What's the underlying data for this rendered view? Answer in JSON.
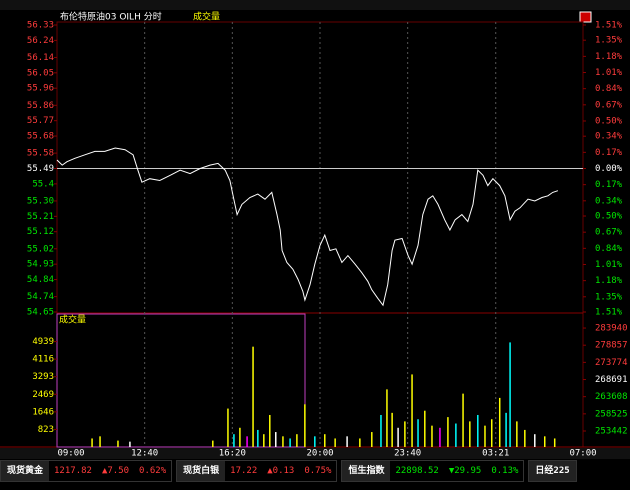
{
  "header": {
    "name": "布伦特原油03 OILH 分时",
    "indicator": "成交量"
  },
  "chart_data": [
    {
      "type": "line",
      "reference": 55.49,
      "grid": true,
      "up_color": "#ff3c3c",
      "down_color": "#00e600",
      "ylim": [
        54.65,
        56.33
      ],
      "yticks": [
        56.33,
        56.24,
        56.14,
        56.05,
        55.96,
        55.86,
        55.77,
        55.68,
        55.58,
        55.49,
        55.4,
        {
          "value": 55.3,
          "label": "55.30"
        },
        55.21,
        55.12,
        55.02,
        54.93,
        54.84,
        54.74,
        54.65
      ],
      "y2lim": [
        -1.51,
        1.51
      ],
      "y2ticks": [
        {
          "value": 1.51,
          "label": "1.51%"
        },
        {
          "value": 1.35,
          "label": "1.35%"
        },
        {
          "value": 1.18,
          "label": "1.18%"
        },
        {
          "value": 1.01,
          "label": "1.01%"
        },
        {
          "value": 0.84,
          "label": "0.84%"
        },
        {
          "value": 0.67,
          "label": "0.67%"
        },
        {
          "value": 0.5,
          "label": "0.50%"
        },
        {
          "value": 0.34,
          "label": "0.34%"
        },
        {
          "value": 0.17,
          "label": "0.17%"
        },
        {
          "value": 0,
          "label": "0.00%"
        },
        {
          "value": -0.17,
          "label": "0.17%"
        },
        {
          "value": -0.34,
          "label": "0.34%"
        },
        {
          "value": -0.5,
          "label": "0.50%"
        },
        {
          "value": -0.67,
          "label": "0.67%"
        },
        {
          "value": -0.84,
          "label": "0.84%"
        },
        {
          "value": -1.01,
          "label": "1.01%"
        },
        {
          "value": -1.18,
          "label": "1.18%"
        },
        {
          "value": -1.35,
          "label": "1.35%"
        },
        {
          "value": -1.51,
          "label": "1.51%"
        }
      ],
      "xlim": [
        0,
        1320
      ],
      "xticks": [
        {
          "value": 0,
          "label": "09:00"
        },
        {
          "value": 220,
          "label": "12:40"
        },
        {
          "value": 440,
          "label": "16:20"
        },
        {
          "value": 660,
          "label": "20:00"
        },
        {
          "value": 880,
          "label": "23:40"
        },
        {
          "value": 1101,
          "label": "03:21"
        },
        {
          "value": 1320,
          "label": "07:00"
        }
      ],
      "x": [
        0,
        13,
        25,
        45,
        70,
        95,
        120,
        146,
        171,
        191,
        203,
        213,
        233,
        258,
        284,
        309,
        334,
        359,
        384,
        404,
        422,
        434,
        442,
        452,
        464,
        484,
        504,
        522,
        539,
        552,
        560,
        565,
        577,
        592,
        605,
        617,
        622,
        635,
        647,
        660,
        672,
        685,
        700,
        715,
        730,
        748,
        765,
        780,
        790,
        805,
        818,
        830,
        841,
        848,
        866,
        881,
        891,
        906,
        918,
        931,
        943,
        956,
        973,
        986,
        999,
        1016,
        1031,
        1044,
        1056,
        1069,
        1081,
        1094,
        1111,
        1124,
        1137,
        1149,
        1162,
        1182,
        1199,
        1217,
        1232,
        1244,
        1257
      ],
      "series": [
        {
          "color": "#ffffff",
          "values": [
            55.54,
            55.51,
            55.53,
            55.55,
            55.57,
            55.59,
            55.59,
            55.61,
            55.6,
            55.57,
            55.48,
            55.41,
            55.43,
            55.42,
            55.45,
            55.48,
            55.46,
            55.49,
            55.51,
            55.52,
            55.48,
            55.42,
            55.33,
            55.22,
            55.28,
            55.32,
            55.34,
            55.31,
            55.35,
            55.22,
            55.13,
            55.01,
            54.94,
            54.9,
            54.84,
            54.77,
            54.72,
            54.81,
            54.93,
            55.04,
            55.1,
            55.01,
            55.02,
            54.94,
            54.98,
            54.93,
            54.88,
            54.83,
            54.78,
            54.73,
            54.69,
            54.81,
            55.01,
            55.07,
            55.08,
            54.98,
            54.93,
            55.04,
            55.22,
            55.31,
            55.33,
            55.28,
            55.19,
            55.13,
            55.19,
            55.22,
            55.18,
            55.28,
            55.48,
            55.45,
            55.39,
            55.43,
            55.39,
            55.33,
            55.19,
            55.24,
            55.26,
            55.31,
            55.3,
            55.32,
            55.33,
            55.35,
            55.36
          ]
        }
      ]
    },
    {
      "type": "bar",
      "title": "成交量",
      "ylim": [
        0,
        5762
      ],
      "yticks": [
        823,
        1646,
        2469,
        3293,
        4116,
        4939
      ],
      "y2lim": [
        248706,
        285136
      ],
      "y2ticks": [
        253442,
        258525,
        263608,
        268691,
        273774,
        278857,
        283940
      ],
      "y2tick_colors": [
        "#00e600",
        "#00e600",
        "#00e600",
        "#ffffff",
        "#ff3c3c",
        "#ff3c3c",
        "#ff3c3c"
      ],
      "xlim": [
        0,
        1320
      ],
      "x": [
        88,
        108,
        153,
        183,
        391,
        429,
        444,
        459,
        477,
        492,
        504,
        519,
        534,
        549,
        567,
        585,
        602,
        622,
        647,
        672,
        698,
        728,
        760,
        790,
        813,
        828,
        841,
        856,
        873,
        891,
        906,
        923,
        941,
        961,
        981,
        1001,
        1019,
        1036,
        1056,
        1074,
        1091,
        1111,
        1127,
        1137,
        1154,
        1174,
        1199,
        1224,
        1249
      ],
      "values": [
        400,
        500,
        300,
        250,
        300,
        1800,
        600,
        900,
        500,
        4700,
        800,
        600,
        1500,
        700,
        500,
        400,
        600,
        2000,
        500,
        600,
        400,
        500,
        400,
        700,
        1500,
        2700,
        1600,
        900,
        1200,
        3400,
        1300,
        1700,
        1000,
        900,
        1400,
        1100,
        2500,
        1200,
        1500,
        1000,
        1300,
        2300,
        1600,
        4900,
        1200,
        800,
        600,
        500,
        400
      ],
      "colors": [
        "#ffff00",
        "#ffff00",
        "#ffff00",
        "#ffffff",
        "#ffff00",
        "#ffff00",
        "#00ffff",
        "#ffff00",
        "#ff00ff",
        "#ffff00",
        "#00ffff",
        "#ffff00",
        "#ffff00",
        "#ffffff",
        "#ffff00",
        "#00ffff",
        "#ffff00",
        "#ffff00",
        "#00ffff",
        "#ffff00",
        "#ffff00",
        "#ffffff",
        "#ffff00",
        "#ffff00",
        "#00ffff",
        "#ffff00",
        "#ffff00",
        "#ffffff",
        "#ffff00",
        "#ffff00",
        "#00ffff",
        "#ffff00",
        "#ffff00",
        "#ff00ff",
        "#ffff00",
        "#00ffff",
        "#ffff00",
        "#ffff00",
        "#00ffff",
        "#ffff00",
        "#ffff00",
        "#ffff00",
        "#00ffff",
        "#00ffff",
        "#ffff00",
        "#ffff00",
        "#ffffff",
        "#ffff00",
        "#ffff00"
      ]
    }
  ],
  "status_bar": [
    {
      "name": "现货黄金",
      "price": "1217.82",
      "change": "▲7.50",
      "pct": "0.62%",
      "color": "#ff3c3c"
    },
    {
      "name": "现货白银",
      "price": "17.22",
      "change": "▲0.13",
      "pct": "0.75%",
      "color": "#ff3c3c"
    },
    {
      "name": "恒生指数",
      "price": "22898.52",
      "change": "▼29.95",
      "pct": "0.13%",
      "color": "#00e600"
    },
    {
      "name": "日经225"
    }
  ]
}
